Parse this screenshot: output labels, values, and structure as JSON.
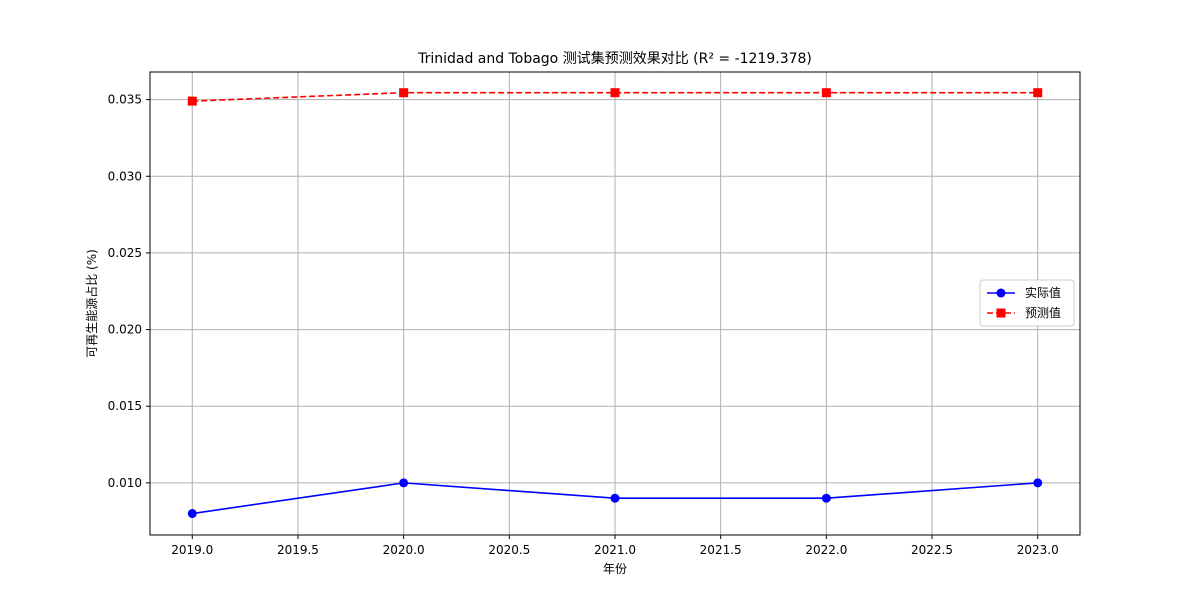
{
  "chart_data": {
    "type": "line",
    "title": "Trinidad and Tobago 测试集预测效果对比 (R² = -1219.378)",
    "xlabel": "年份",
    "ylabel": "可再生能源占比 (%)",
    "x": [
      2019,
      2020,
      2021,
      2022,
      2023
    ],
    "xlim": [
      2018.8,
      2023.2
    ],
    "ylim": [
      0.0066,
      0.0368
    ],
    "xticks": [
      2019.0,
      2019.5,
      2020.0,
      2020.5,
      2021.0,
      2021.5,
      2022.0,
      2022.5,
      2023.0
    ],
    "xtick_labels": [
      "2019.0",
      "2019.5",
      "2020.0",
      "2020.5",
      "2021.0",
      "2021.5",
      "2022.0",
      "2022.5",
      "2023.0"
    ],
    "yticks": [
      0.01,
      0.015,
      0.02,
      0.025,
      0.03,
      0.035
    ],
    "ytick_labels": [
      "0.010",
      "0.015",
      "0.020",
      "0.025",
      "0.030",
      "0.035"
    ],
    "grid": true,
    "legend_position": "center-right",
    "series": [
      {
        "name": "实际值",
        "values": [
          0.008,
          0.01,
          0.009,
          0.009,
          0.01
        ],
        "color": "#0000ff",
        "line_style": "solid",
        "marker": "circle"
      },
      {
        "name": "预测值",
        "values": [
          0.0349,
          0.03545,
          0.03545,
          0.03545,
          0.03545
        ],
        "color": "#ff0000",
        "line_style": "dashed",
        "marker": "square"
      }
    ]
  }
}
